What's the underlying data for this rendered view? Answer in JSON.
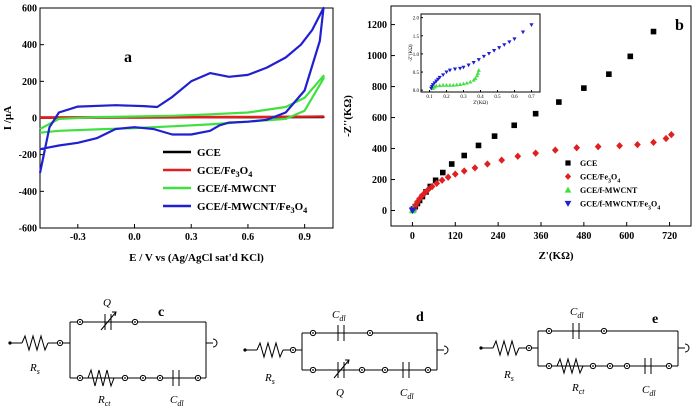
{
  "chart_data": [
    {
      "type": "line",
      "panel_label": "a",
      "xlabel": "E / V vs (Ag/AgCl sat'd KCl)",
      "ylabel": "I /µA",
      "xlim": [
        -0.5,
        1.05
      ],
      "ylim": [
        -600,
        600
      ],
      "xticks": [
        -0.3,
        0.0,
        0.3,
        0.6,
        0.9
      ],
      "xtick_labels": [
        "-0.3",
        "0.0",
        "0.3",
        "0.6",
        "0.9"
      ],
      "yticks": [
        -600,
        -400,
        -200,
        0,
        200,
        400,
        600
      ],
      "ytick_labels": [
        "-600",
        "-400",
        "-200",
        "0",
        "200",
        "400",
        "600"
      ],
      "legend_position": "lower-right",
      "series": [
        {
          "name": "GCE",
          "color": "#000000",
          "x": [
            -0.5,
            1.0,
            -0.5
          ],
          "y": [
            3,
            5,
            1
          ]
        },
        {
          "name": "GCE/Fe3O4",
          "color": "#e02020",
          "x": [
            -0.5,
            0.0,
            0.5,
            1.0,
            0.5,
            0.0,
            -0.5
          ],
          "y": [
            4,
            5,
            6,
            8,
            4,
            2,
            1
          ]
        },
        {
          "name": "GCE/f-MWCNT",
          "color": "#40e040",
          "x": [
            -0.5,
            -0.4,
            -0.2,
            0.0,
            0.2,
            0.4,
            0.6,
            0.8,
            0.9,
            0.95,
            1.0,
            1.0,
            0.9,
            0.8,
            0.6,
            0.4,
            0.2,
            0.0,
            -0.2,
            -0.4,
            -0.5
          ],
          "y": [
            -60,
            -5,
            5,
            8,
            12,
            20,
            30,
            60,
            110,
            170,
            230,
            215,
            40,
            -5,
            -20,
            -35,
            -45,
            -55,
            -62,
            -70,
            -80
          ]
        },
        {
          "name": "GCE/f-MWCNT/Fe3O4",
          "color": "#2020d0",
          "x": [
            -0.5,
            -0.45,
            -0.4,
            -0.3,
            -0.1,
            0.05,
            0.12,
            0.2,
            0.3,
            0.4,
            0.5,
            0.6,
            0.7,
            0.8,
            0.88,
            0.94,
            1.0,
            0.98,
            0.9,
            0.8,
            0.7,
            0.6,
            0.5,
            0.45,
            0.4,
            0.3,
            0.2,
            0.1,
            0.0,
            -0.1,
            -0.2,
            -0.3,
            -0.4,
            -0.45,
            -0.5
          ],
          "y": [
            -300,
            -50,
            30,
            62,
            70,
            65,
            60,
            115,
            200,
            245,
            225,
            235,
            275,
            330,
            400,
            480,
            600,
            420,
            150,
            30,
            -10,
            -20,
            -25,
            -40,
            -70,
            -90,
            -90,
            -60,
            -50,
            -60,
            -110,
            -135,
            -150,
            -160,
            -170
          ]
        }
      ]
    },
    {
      "type": "scatter",
      "panel_label": "b",
      "xlabel": "Z'(KΩ)",
      "ylabel": "-Z''(KΩ)",
      "xlim": [
        -60,
        780
      ],
      "ylim": [
        -100,
        1320
      ],
      "xticks": [
        0,
        120,
        240,
        360,
        480,
        600,
        720
      ],
      "xtick_labels": [
        "0",
        "120",
        "240",
        "360",
        "480",
        "600",
        "720"
      ],
      "yticks": [
        0,
        200,
        400,
        600,
        800,
        1000,
        1200
      ],
      "ytick_labels": [
        "0",
        "200",
        "400",
        "600",
        "800",
        "1000",
        "1200"
      ],
      "legend_position": "lower-right",
      "series": [
        {
          "name": "GCE",
          "color": "#000000",
          "marker": "square",
          "x": [
            3,
            8,
            14,
            20,
            28,
            38,
            50,
            65,
            85,
            110,
            145,
            185,
            230,
            285,
            345,
            410,
            480,
            550,
            610,
            675
          ],
          "y": [
            10,
            25,
            45,
            65,
            90,
            120,
            155,
            195,
            245,
            300,
            355,
            420,
            480,
            550,
            625,
            700,
            790,
            880,
            995,
            1155
          ]
        },
        {
          "name": "GCE/Fe3O4",
          "color": "#e02020",
          "marker": "diamond",
          "x": [
            2,
            5,
            9,
            14,
            20,
            27,
            35,
            44,
            55,
            68,
            83,
            100,
            120,
            145,
            175,
            210,
            250,
            295,
            345,
            400,
            460,
            520,
            580,
            630,
            675,
            710,
            725
          ],
          "y": [
            5,
            18,
            35,
            55,
            75,
            95,
            115,
            135,
            155,
            175,
            195,
            215,
            235,
            255,
            275,
            300,
            325,
            350,
            370,
            390,
            405,
            412,
            418,
            425,
            440,
            465,
            490
          ]
        },
        {
          "name": "GCE/f-MWCNT",
          "color": "#40e040",
          "marker": "triangle-up",
          "x": [
            0,
            1,
            2
          ],
          "y": [
            0,
            3,
            6
          ]
        },
        {
          "name": "GCE/f-MWCNT/Fe3O4",
          "color": "#2020d0",
          "marker": "triangle-down",
          "x": [
            0,
            1
          ],
          "y": [
            0,
            2
          ]
        }
      ],
      "inset": {
        "xlabel": "Z'(KΩ)",
        "ylabel": "-Z''(KΩ)",
        "xlim": [
          0.05,
          0.75
        ],
        "ylim": [
          -0.05,
          2.1
        ],
        "xticks": [
          0.1,
          0.2,
          0.3,
          0.4,
          0.5,
          0.6,
          0.7
        ],
        "xtick_labels": [
          "0.1",
          "0.2",
          "0.3",
          "0.4",
          "0.5",
          "0.6",
          "0.7"
        ],
        "yticks": [
          0.0,
          0.5,
          1.0,
          1.5,
          2.0
        ],
        "ytick_labels": [
          "0.0",
          "0.5",
          "1.0",
          "1.5",
          "2.0"
        ],
        "series": [
          {
            "name": "GCE/f-MWCNT",
            "color": "#40e040",
            "marker": "triangle-up",
            "x": [
              0.12,
              0.13,
              0.14,
              0.16,
              0.18,
              0.2,
              0.22,
              0.24,
              0.26,
              0.28,
              0.3,
              0.32,
              0.34,
              0.36,
              0.37,
              0.38,
              0.385,
              0.39
            ],
            "y": [
              0.05,
              0.09,
              0.12,
              0.13,
              0.14,
              0.14,
              0.14,
              0.14,
              0.15,
              0.16,
              0.18,
              0.2,
              0.23,
              0.28,
              0.33,
              0.4,
              0.47,
              0.55
            ]
          },
          {
            "name": "GCE/f-MWCNT/Fe3O4",
            "color": "#2020d0",
            "marker": "triangle-down",
            "x": [
              0.11,
              0.115,
              0.12,
              0.13,
              0.14,
              0.15,
              0.16,
              0.18,
              0.2,
              0.22,
              0.25,
              0.28,
              0.3,
              0.33,
              0.36,
              0.39,
              0.42,
              0.45,
              0.48,
              0.51,
              0.54,
              0.57,
              0.6,
              0.65,
              0.7
            ],
            "y": [
              0.05,
              0.1,
              0.15,
              0.2,
              0.25,
              0.3,
              0.35,
              0.42,
              0.5,
              0.55,
              0.58,
              0.6,
              0.63,
              0.69,
              0.76,
              0.84,
              0.93,
              1.01,
              1.09,
              1.17,
              1.25,
              1.33,
              1.41,
              1.6,
              1.8
            ]
          }
        ]
      }
    }
  ],
  "circuits": [
    {
      "label": "c",
      "elements": [
        "R",
        "s",
        "Q",
        "R",
        "ct",
        "C",
        "dl"
      ]
    },
    {
      "label": "d",
      "elements": [
        "C",
        "dl",
        "R",
        "s",
        "Q",
        "C",
        "dl"
      ]
    },
    {
      "label": "e",
      "elements": [
        "C",
        "dl",
        "R",
        "s",
        "R",
        "ct",
        "C",
        "dl"
      ]
    }
  ],
  "legend_text": {
    "a": [
      {
        "main": "GCE",
        "sub": "",
        "tail": ""
      },
      {
        "main": "GCE/Fe",
        "sub": "3",
        "tail": "O",
        "sub2": "4"
      },
      {
        "main": "GCE/f-MWCNT",
        "sub": "",
        "tail": ""
      },
      {
        "main": "GCE/f-MWCNT/Fe",
        "sub": "3",
        "tail": "O",
        "sub2": "4"
      }
    ],
    "b": [
      {
        "main": "GCE",
        "sub": "",
        "tail": ""
      },
      {
        "main": "GCE/Fe",
        "sub": "3",
        "tail": "O",
        "sub2": "4"
      },
      {
        "main": "GCE/f-MWCNT",
        "sub": "",
        "tail": ""
      },
      {
        "main": "GCE/f-MWCNT/Fe",
        "sub": "3",
        "tail": "O",
        "sub2": "4"
      }
    ]
  }
}
